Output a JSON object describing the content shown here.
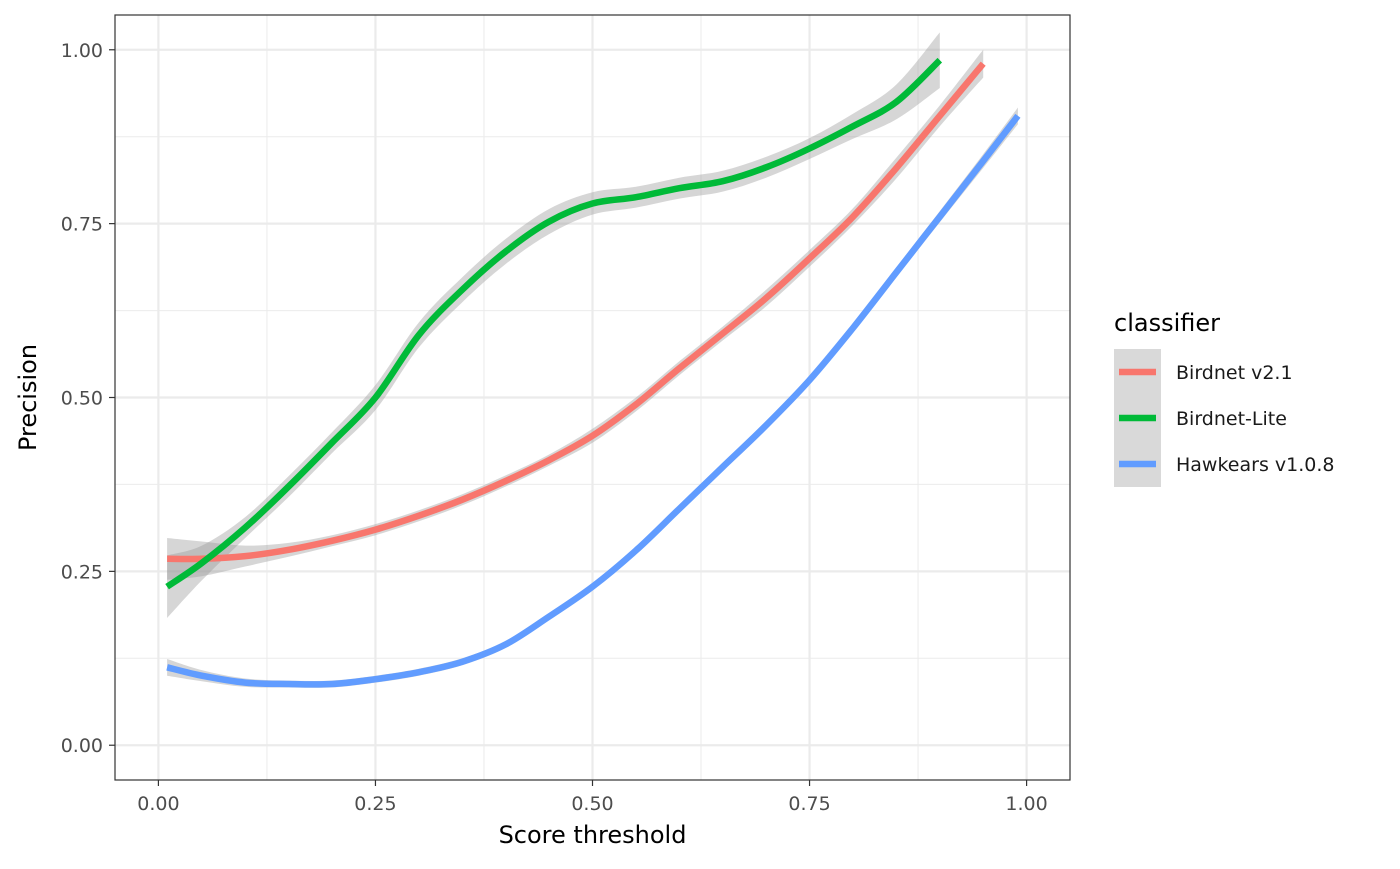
{
  "chart_data": {
    "type": "line",
    "title": "",
    "xlabel": "Score threshold",
    "ylabel": "Precision",
    "xlim": [
      -0.05,
      1.05
    ],
    "ylim": [
      -0.05,
      1.05
    ],
    "x_ticks": [
      0,
      0.25,
      0.5,
      0.75,
      1
    ],
    "x_tick_labels": [
      "0.00",
      "0.25",
      "0.50",
      "0.75",
      "1.00"
    ],
    "y_ticks": [
      0,
      0.25,
      0.5,
      0.75,
      1
    ],
    "y_tick_labels": [
      "0.00",
      "0.25",
      "0.50",
      "0.75",
      "1.00"
    ],
    "grid": true,
    "confidence_band": true,
    "legend": {
      "title": "classifier",
      "position": "right"
    },
    "series": [
      {
        "name": "Birdnet v2.1",
        "color": "#F8766D",
        "x": [
          0.01,
          0.05,
          0.1,
          0.15,
          0.2,
          0.25,
          0.3,
          0.35,
          0.4,
          0.45,
          0.5,
          0.55,
          0.6,
          0.65,
          0.7,
          0.75,
          0.8,
          0.85,
          0.9,
          0.95
        ],
        "y": [
          0.268,
          0.268,
          0.272,
          0.281,
          0.294,
          0.31,
          0.33,
          0.353,
          0.38,
          0.41,
          0.445,
          0.49,
          0.542,
          0.592,
          0.643,
          0.7,
          0.76,
          0.83,
          0.905,
          0.98
        ],
        "band": [
          0.03,
          0.025,
          0.015,
          0.01,
          0.008,
          0.008,
          0.008,
          0.008,
          0.008,
          0.008,
          0.01,
          0.01,
          0.01,
          0.01,
          0.012,
          0.012,
          0.012,
          0.015,
          0.015,
          0.02
        ]
      },
      {
        "name": "Birdnet-Lite",
        "color": "#00BA38",
        "x": [
          0.01,
          0.05,
          0.1,
          0.15,
          0.2,
          0.25,
          0.3,
          0.35,
          0.4,
          0.45,
          0.5,
          0.55,
          0.6,
          0.65,
          0.7,
          0.75,
          0.8,
          0.85,
          0.9
        ],
        "y": [
          0.228,
          0.262,
          0.313,
          0.372,
          0.435,
          0.5,
          0.59,
          0.655,
          0.71,
          0.753,
          0.779,
          0.788,
          0.801,
          0.811,
          0.831,
          0.858,
          0.89,
          0.925,
          0.985
        ],
        "band": [
          0.045,
          0.025,
          0.015,
          0.015,
          0.015,
          0.018,
          0.018,
          0.018,
          0.018,
          0.018,
          0.016,
          0.015,
          0.015,
          0.015,
          0.015,
          0.015,
          0.018,
          0.025,
          0.04
        ]
      },
      {
        "name": "Hawkears v1.0.8",
        "color": "#619CFF",
        "x": [
          0.01,
          0.05,
          0.1,
          0.15,
          0.2,
          0.25,
          0.3,
          0.35,
          0.4,
          0.45,
          0.5,
          0.55,
          0.6,
          0.65,
          0.7,
          0.75,
          0.8,
          0.85,
          0.9,
          0.95,
          0.99
        ],
        "y": [
          0.112,
          0.1,
          0.09,
          0.088,
          0.088,
          0.095,
          0.105,
          0.12,
          0.145,
          0.185,
          0.228,
          0.28,
          0.34,
          0.4,
          0.46,
          0.525,
          0.6,
          0.68,
          0.76,
          0.84,
          0.905
        ],
        "band": [
          0.012,
          0.008,
          0.006,
          0.005,
          0.005,
          0.005,
          0.005,
          0.005,
          0.005,
          0.005,
          0.005,
          0.005,
          0.005,
          0.005,
          0.005,
          0.005,
          0.006,
          0.007,
          0.008,
          0.01,
          0.012
        ]
      }
    ]
  }
}
